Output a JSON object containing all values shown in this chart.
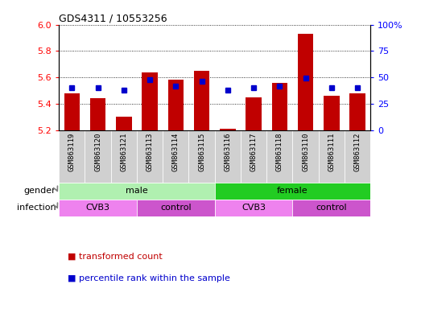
{
  "title": "GDS4311 / 10553256",
  "samples": [
    "GSM863119",
    "GSM863120",
    "GSM863121",
    "GSM863113",
    "GSM863114",
    "GSM863115",
    "GSM863116",
    "GSM863117",
    "GSM863118",
    "GSM863110",
    "GSM863111",
    "GSM863112"
  ],
  "transformed_count": [
    5.48,
    5.44,
    5.3,
    5.64,
    5.58,
    5.65,
    5.21,
    5.45,
    5.56,
    5.93,
    5.46,
    5.48
  ],
  "percentile_rank": [
    40,
    40,
    38,
    48,
    42,
    46,
    38,
    40,
    42,
    49,
    40,
    40
  ],
  "ylim_left": [
    5.2,
    6.0
  ],
  "ylim_right": [
    0,
    100
  ],
  "yticks_left": [
    5.2,
    5.4,
    5.6,
    5.8,
    6.0
  ],
  "yticks_right": [
    0,
    25,
    50,
    75,
    100
  ],
  "bar_color": "#c00000",
  "dot_color": "#0000cc",
  "bar_bottom": 5.2,
  "gender_groups": [
    {
      "label": "male",
      "start": 0,
      "end": 6,
      "color": "#b0f0b0"
    },
    {
      "label": "female",
      "start": 6,
      "end": 12,
      "color": "#22cc22"
    }
  ],
  "infection_groups": [
    {
      "label": "CVB3",
      "start": 0,
      "end": 3,
      "color": "#ee82ee"
    },
    {
      "label": "control",
      "start": 3,
      "end": 6,
      "color": "#cc55cc"
    },
    {
      "label": "CVB3",
      "start": 6,
      "end": 9,
      "color": "#ee82ee"
    },
    {
      "label": "control",
      "start": 9,
      "end": 12,
      "color": "#cc55cc"
    }
  ],
  "legend_items": [
    {
      "label": "transformed count",
      "color": "#c00000"
    },
    {
      "label": "percentile rank within the sample",
      "color": "#0000cc"
    }
  ],
  "gender_label": "gender",
  "infection_label": "infection",
  "tick_bg_color": "#d0d0d0",
  "right_tick_labels": [
    "0",
    "25",
    "50",
    "75",
    "100%"
  ]
}
